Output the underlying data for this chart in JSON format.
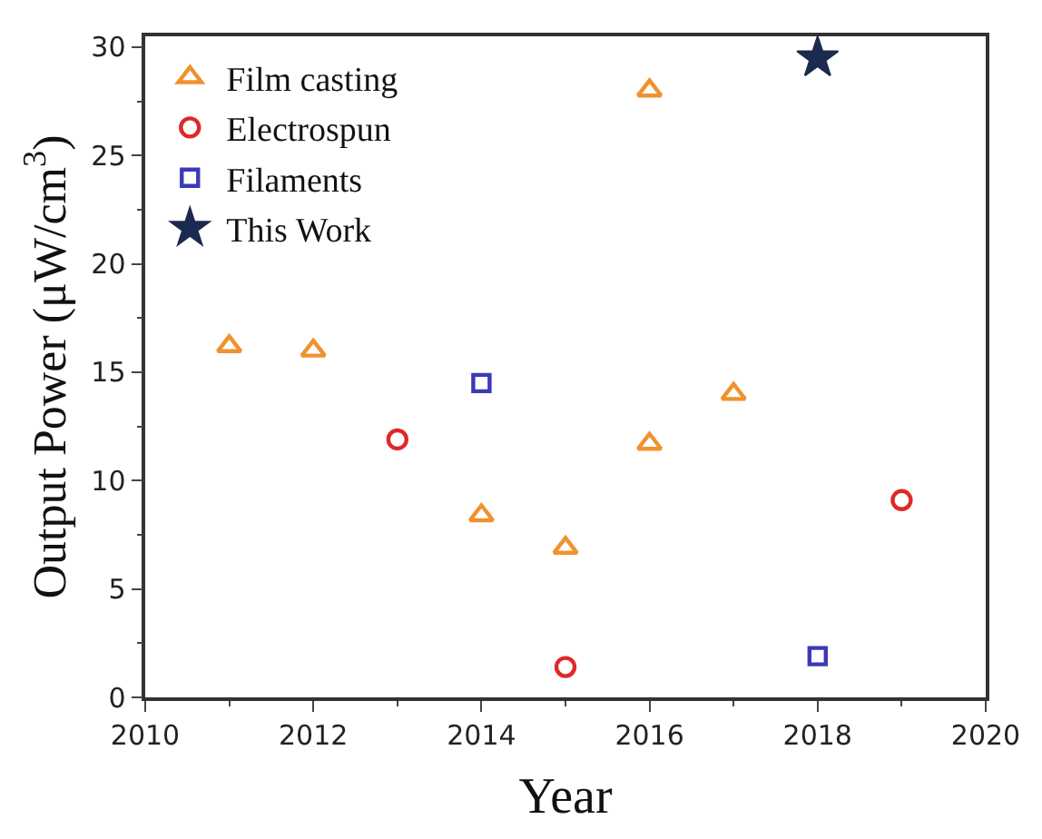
{
  "chart_data": {
    "type": "scatter",
    "xlabel": "Year",
    "ylabel": "Output Power (μW/cm$^{3}$)",
    "xlim": [
      2010,
      2020
    ],
    "xticks": [
      2010,
      2012,
      2014,
      2016,
      2018,
      2020
    ],
    "ylim": [
      0,
      30.5
    ],
    "yticks": [
      0,
      5,
      10,
      15,
      20,
      25,
      30
    ],
    "legend": "top left",
    "series": [
      {
        "name": "Film casting",
        "color": "#f0922e",
        "marker": "triangle",
        "x": [
          2011,
          2012,
          2014,
          2015,
          2016,
          2016,
          2017
        ],
        "values": [
          16.2,
          16.0,
          8.4,
          6.9,
          28.0,
          11.7,
          14.0
        ]
      },
      {
        "name": "Electrospun",
        "color": "#e02828",
        "marker": "circle",
        "x": [
          2013,
          2015,
          2019
        ],
        "values": [
          11.9,
          1.4,
          9.1
        ]
      },
      {
        "name": "Filaments",
        "color": "#3a3ab8",
        "marker": "square",
        "x": [
          2014,
          2018
        ],
        "values": [
          14.5,
          1.9
        ]
      },
      {
        "name": "This Work",
        "color": "#1b2a4e",
        "marker": "star",
        "x": [
          2018
        ],
        "values": [
          29.5
        ]
      }
    ]
  }
}
